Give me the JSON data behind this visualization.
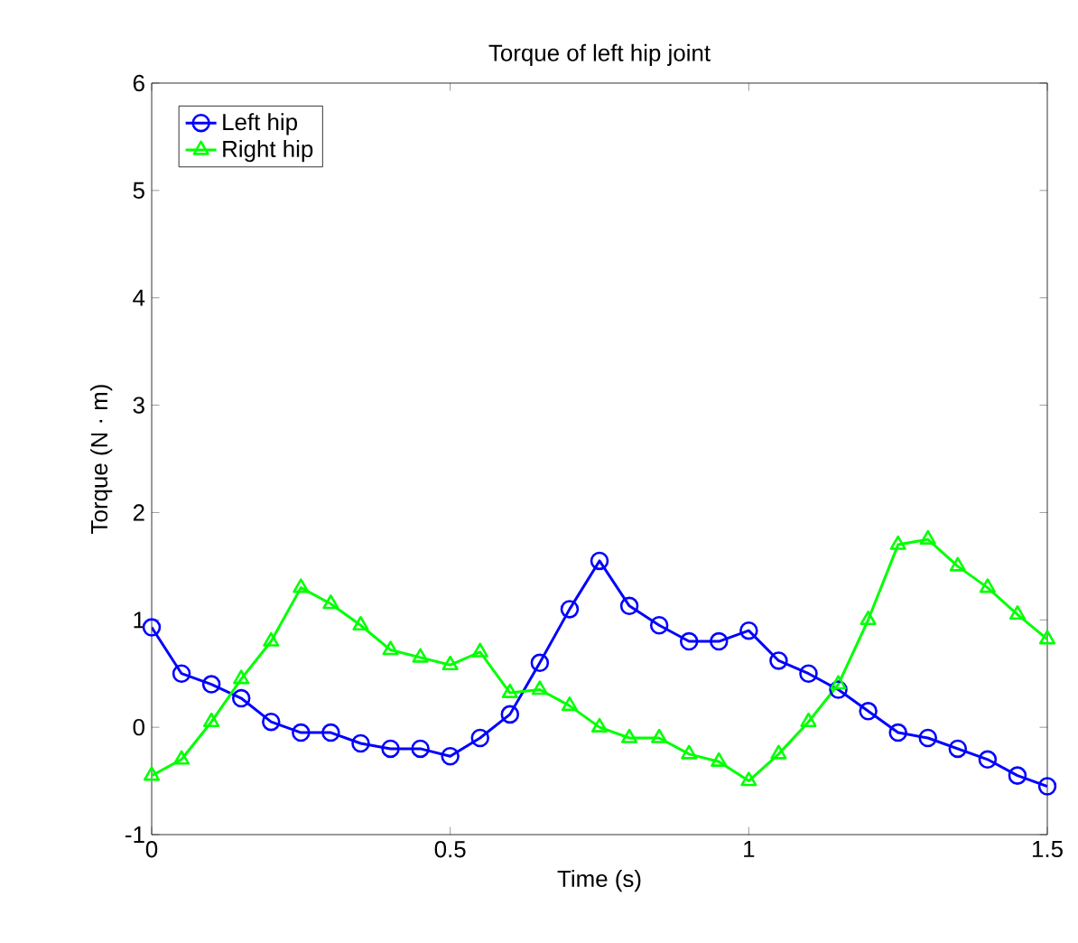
{
  "chart_data": {
    "type": "line",
    "title": "Torque of left hip joint",
    "xlabel": "Time (s)",
    "ylabel": "Torque (N · m)",
    "x": [
      0,
      0.05,
      0.1,
      0.15,
      0.2,
      0.25,
      0.3,
      0.35,
      0.4,
      0.45,
      0.5,
      0.55,
      0.6,
      0.65,
      0.7,
      0.75,
      0.8,
      0.85,
      0.9,
      0.95,
      1.0,
      1.05,
      1.1,
      1.15,
      1.2,
      1.25,
      1.3,
      1.35,
      1.4,
      1.45,
      1.5
    ],
    "series": [
      {
        "name": "Left hip",
        "color": "#0000ff",
        "marker": "circle",
        "values": [
          0.93,
          0.5,
          0.4,
          0.27,
          0.05,
          -0.05,
          -0.05,
          -0.15,
          -0.2,
          -0.2,
          -0.27,
          -0.1,
          0.12,
          0.6,
          1.1,
          1.55,
          1.13,
          0.95,
          0.8,
          0.8,
          0.9,
          0.62,
          0.5,
          0.35,
          0.15,
          -0.05,
          -0.1,
          -0.2,
          -0.3,
          -0.45,
          -0.55
        ]
      },
      {
        "name": "Right hip",
        "color": "#00ff00",
        "marker": "triangle",
        "values": [
          -0.45,
          -0.3,
          0.05,
          0.45,
          0.8,
          1.3,
          1.15,
          0.95,
          0.72,
          0.65,
          0.58,
          0.7,
          0.32,
          0.35,
          0.2,
          0.0,
          -0.1,
          -0.1,
          -0.25,
          -0.32,
          -0.5,
          -0.25,
          0.05,
          0.4,
          1.0,
          1.7,
          1.75,
          1.5,
          1.3,
          1.05,
          0.82
        ]
      }
    ],
    "xlim": [
      0,
      1.5
    ],
    "ylim": [
      -1,
      6
    ],
    "xticks": [
      0,
      0.5,
      1,
      1.5
    ],
    "yticks": [
      -1,
      0,
      1,
      2,
      3,
      4,
      5,
      6
    ],
    "legend": "top left",
    "grid": false
  }
}
